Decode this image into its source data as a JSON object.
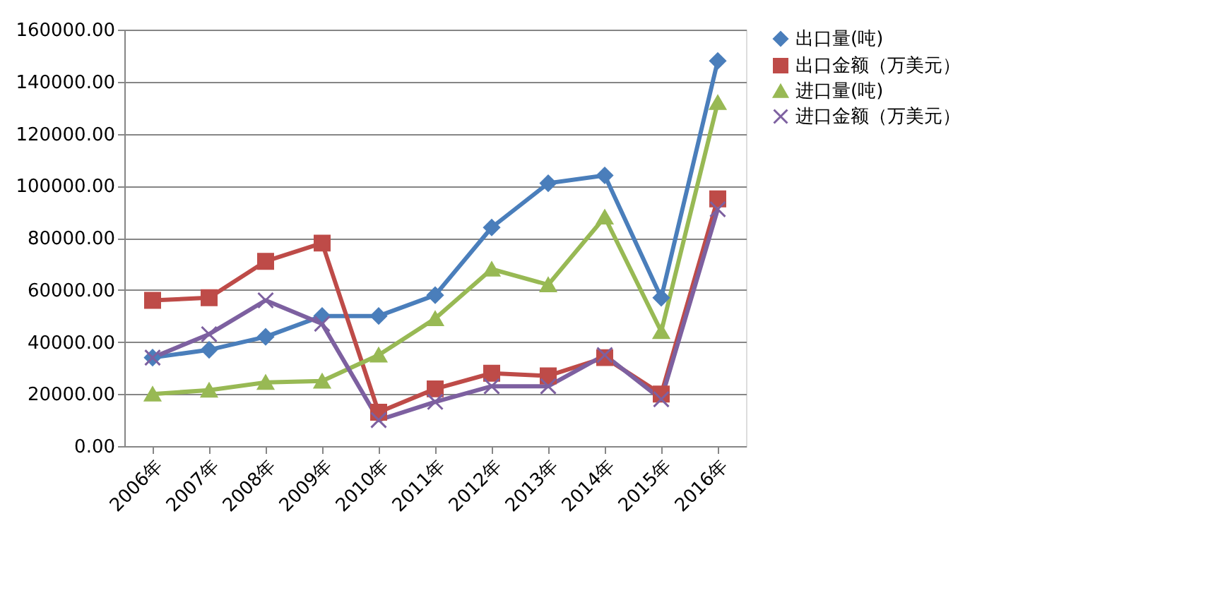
{
  "chart_data": {
    "type": "line",
    "categories": [
      "2006年",
      "2007年",
      "2008年",
      "2009年",
      "2010年",
      "2011年",
      "2012年",
      "2013年",
      "2014年",
      "2015年",
      "2016年"
    ],
    "series": [
      {
        "name": "出口量(吨)",
        "color": "#4a7ebb",
        "marker": "diamond",
        "values": [
          34000,
          37000,
          42000,
          50000,
          50000,
          58000,
          84000,
          101000,
          104000,
          57000,
          148000
        ]
      },
      {
        "name": "出口金额（万美元）",
        "color": "#be4b48",
        "marker": "square",
        "values": [
          56000,
          57000,
          71000,
          78000,
          13000,
          22000,
          28000,
          27000,
          34000,
          20000,
          95000
        ]
      },
      {
        "name": "进口量(吨)",
        "color": "#98b954",
        "marker": "triangle",
        "values": [
          20000,
          21500,
          24500,
          25000,
          35000,
          49000,
          68000,
          62000,
          88000,
          44000,
          132000
        ]
      },
      {
        "name": "进口金额（万美元）",
        "color": "#7d60a0",
        "marker": "cross",
        "values": [
          34000,
          43000,
          56000,
          47000,
          10000,
          17000,
          23000,
          23000,
          35000,
          18000,
          91000
        ]
      }
    ],
    "ylim": [
      0,
      160000
    ],
    "yticks": [
      {
        "value": 0,
        "label": "0.00"
      },
      {
        "value": 20000,
        "label": "20000.00"
      },
      {
        "value": 40000,
        "label": "40000.00"
      },
      {
        "value": 60000,
        "label": "60000.00"
      },
      {
        "value": 80000,
        "label": "80000.00"
      },
      {
        "value": 100000,
        "label": "100000.00"
      },
      {
        "value": 120000,
        "label": "120000.00"
      },
      {
        "value": 140000,
        "label": "140000.00"
      },
      {
        "value": 160000,
        "label": "160000.00"
      }
    ],
    "grid": "y",
    "legend": "right",
    "line_style": "solid"
  }
}
